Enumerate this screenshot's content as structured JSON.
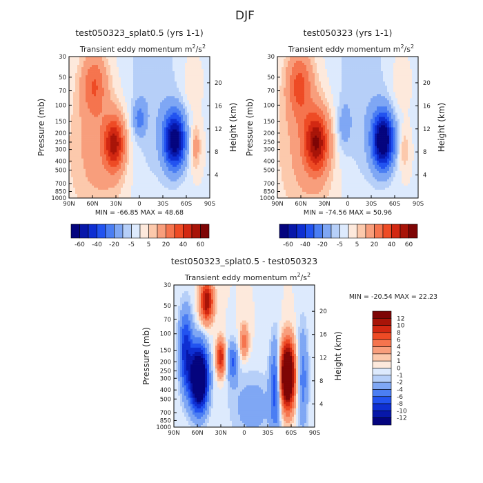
{
  "page": {
    "title": "DJF"
  },
  "colors": {
    "neg": [
      "#04047e",
      "#0717a9",
      "#0e2fd2",
      "#2253f0",
      "#4b7ef3",
      "#7fa7f4",
      "#b6cff8",
      "#ddeafd"
    ],
    "pos": [
      "#fde9dc",
      "#fcc9ac",
      "#f89e7c",
      "#f5744e",
      "#ee4b25",
      "#d22812",
      "#a81408",
      "#7e0505"
    ]
  },
  "chart_data": [
    {
      "type": "contour",
      "title": "test050323_splat0.5 (yrs 1-1)",
      "subtitle": "Transient eddy momentum",
      "units_base": "m",
      "units_exp1": "2",
      "units_mid": "/s",
      "units_exp2": "2",
      "xlabel": "",
      "ylabel": "Pressure (mb)",
      "y2label": "Height (km)",
      "x_ticks": [
        "90N",
        "60N",
        "30N",
        "0",
        "30S",
        "60S",
        "90S"
      ],
      "y_ticks": [
        "30",
        "50",
        "70",
        "100",
        "150",
        "200",
        "250",
        "300",
        "400",
        "500",
        "700",
        "850",
        "1000"
      ],
      "y_tick_values": [
        30,
        50,
        70,
        100,
        150,
        200,
        250,
        300,
        400,
        500,
        700,
        850,
        1000
      ],
      "y2_ticks": [
        "4",
        "8",
        "12",
        "16",
        "20"
      ],
      "y2_tick_values": [
        4,
        8,
        12,
        16,
        20
      ],
      "ylim": [
        1000,
        30
      ],
      "xlim": [
        90,
        -90
      ],
      "min_label": "MIN = -66.85   MAX =  48.68",
      "min": -66.85,
      "max": 48.68,
      "levels": [
        -60,
        -50,
        -40,
        -30,
        -20,
        -10,
        -5,
        0,
        5,
        10,
        20,
        30,
        40,
        50,
        60
      ],
      "colorbar_labels": [
        "-60",
        "-40",
        "-20",
        "-5",
        "5",
        "20",
        "40",
        "60"
      ],
      "features": [
        {
          "lat": 32,
          "p": 260,
          "amp": 48.68,
          "wx": 9,
          "wp": 0.45
        },
        {
          "lat": 58,
          "p": 60,
          "amp": 26,
          "wx": 11,
          "wp": 0.55
        },
        {
          "lat": 52,
          "p": 300,
          "amp": 14,
          "wx": 26,
          "wp": 1.2
        },
        {
          "lat": -45,
          "p": 240,
          "amp": -66.85,
          "wx": 9.5,
          "wp": 0.48
        },
        {
          "lat": 0,
          "p": 140,
          "amp": -20,
          "wx": 5.5,
          "wp": 0.28
        },
        {
          "lat": -72,
          "p": 280,
          "amp": 16,
          "wx": 4.5,
          "wp": 0.38
        },
        {
          "lat": -15,
          "p": 80,
          "amp": -9,
          "wx": 28,
          "wp": 1.8
        },
        {
          "lat": -65,
          "p": 60,
          "amp": 5,
          "wx": 8,
          "wp": 0.5
        }
      ]
    },
    {
      "type": "contour",
      "title": "test050323 (yrs 1-1)",
      "subtitle": "Transient eddy momentum",
      "units_base": "m",
      "units_exp1": "2",
      "units_mid": "/s",
      "units_exp2": "2",
      "xlabel": "",
      "ylabel": "Pressure (mb)",
      "y2label": "Height (km)",
      "x_ticks": [
        "90N",
        "60N",
        "30N",
        "0",
        "30S",
        "60S",
        "90S"
      ],
      "y_ticks": [
        "30",
        "50",
        "70",
        "100",
        "150",
        "200",
        "250",
        "300",
        "400",
        "500",
        "700",
        "850",
        "1000"
      ],
      "y_tick_values": [
        30,
        50,
        70,
        100,
        150,
        200,
        250,
        300,
        400,
        500,
        700,
        850,
        1000
      ],
      "y2_ticks": [
        "4",
        "8",
        "12",
        "16",
        "20"
      ],
      "y2_tick_values": [
        4,
        8,
        12,
        16,
        20
      ],
      "ylim": [
        1000,
        30
      ],
      "xlim": [
        90,
        -90
      ],
      "min_label": "MIN = -74.56   MAX =  50.96",
      "min": -74.56,
      "max": 50.96,
      "levels": [
        -60,
        -50,
        -40,
        -30,
        -20,
        -10,
        -5,
        0,
        5,
        10,
        20,
        30,
        40,
        50,
        60
      ],
      "colorbar_labels": [
        "-60",
        "-40",
        "-20",
        "-5",
        "5",
        "20",
        "40",
        "60"
      ],
      "features": [
        {
          "lat": 40,
          "p": 250,
          "amp": 50.96,
          "wx": 10.5,
          "wp": 0.5
        },
        {
          "lat": 62,
          "p": 60,
          "amp": 30,
          "wx": 11,
          "wp": 0.6
        },
        {
          "lat": 50,
          "p": 300,
          "amp": 14,
          "wx": 26,
          "wp": 1.2
        },
        {
          "lat": -45,
          "p": 240,
          "amp": -74.56,
          "wx": 9.5,
          "wp": 0.48
        },
        {
          "lat": 5,
          "p": 170,
          "amp": -12,
          "wx": 6,
          "wp": 0.4
        },
        {
          "lat": -72,
          "p": 300,
          "amp": 10,
          "wx": 4.5,
          "wp": 0.38
        },
        {
          "lat": -15,
          "p": 80,
          "amp": -9,
          "wx": 28,
          "wp": 1.8
        },
        {
          "lat": -65,
          "p": 60,
          "amp": 5,
          "wx": 8,
          "wp": 0.5
        }
      ]
    },
    {
      "type": "contour",
      "title": "test050323_splat0.5 - test050323",
      "subtitle": "Transient eddy momentum",
      "units_base": "m",
      "units_exp1": "2",
      "units_mid": "/s",
      "units_exp2": "2",
      "xlabel": "",
      "ylabel": "Pressure (mb)",
      "y2label": "Height (km)",
      "x_ticks": [
        "90N",
        "60N",
        "30N",
        "0",
        "30S",
        "60S",
        "90S"
      ],
      "y_ticks": [
        "30",
        "50",
        "70",
        "100",
        "150",
        "200",
        "250",
        "300",
        "400",
        "500",
        "700",
        "850",
        "1000"
      ],
      "y_tick_values": [
        30,
        50,
        70,
        100,
        150,
        200,
        250,
        300,
        400,
        500,
        700,
        850,
        1000
      ],
      "y2_ticks": [
        "4",
        "8",
        "12",
        "16",
        "20"
      ],
      "y2_tick_values": [
        4,
        8,
        12,
        16,
        20
      ],
      "ylim": [
        1000,
        30
      ],
      "xlim": [
        90,
        -90
      ],
      "min_label": "MIN = -20.54   MAX =  22.23",
      "min": -20.54,
      "max": 22.23,
      "levels": [
        -12,
        -10,
        -8,
        -6,
        -4,
        -2,
        -1,
        0,
        1,
        2,
        4,
        6,
        8,
        10,
        12
      ],
      "colorbar_labels": [
        "12",
        "10",
        "8",
        "6",
        "4",
        "2",
        "1",
        "0",
        "-1",
        "-2",
        "-4",
        "-6",
        "-8",
        "-10",
        "-12"
      ],
      "features": [
        {
          "lat": 58,
          "p": 300,
          "amp": -20.54,
          "wx": 8,
          "wp": 0.55
        },
        {
          "lat": 75,
          "p": 150,
          "amp": -9,
          "wx": 6,
          "wp": 0.7
        },
        {
          "lat": 48,
          "p": 45,
          "amp": 12,
          "wx": 6,
          "wp": 0.35
        },
        {
          "lat": 30,
          "p": 180,
          "amp": 10,
          "wx": 4,
          "wp": 0.3
        },
        {
          "lat": 15,
          "p": 200,
          "amp": -6,
          "wx": 5,
          "wp": 0.35
        },
        {
          "lat": 0,
          "p": 120,
          "amp": 5,
          "wx": 4,
          "wp": 0.3
        },
        {
          "lat": -55,
          "p": 280,
          "amp": 22.23,
          "wx": 6.5,
          "wp": 0.55
        },
        {
          "lat": -40,
          "p": 350,
          "amp": -7,
          "wx": 5,
          "wp": 0.8
        },
        {
          "lat": -75,
          "p": 300,
          "amp": -5,
          "wx": 5,
          "wp": 0.9
        },
        {
          "lat": -10,
          "p": 600,
          "amp": -3,
          "wx": 20,
          "wp": 0.6
        }
      ]
    }
  ]
}
